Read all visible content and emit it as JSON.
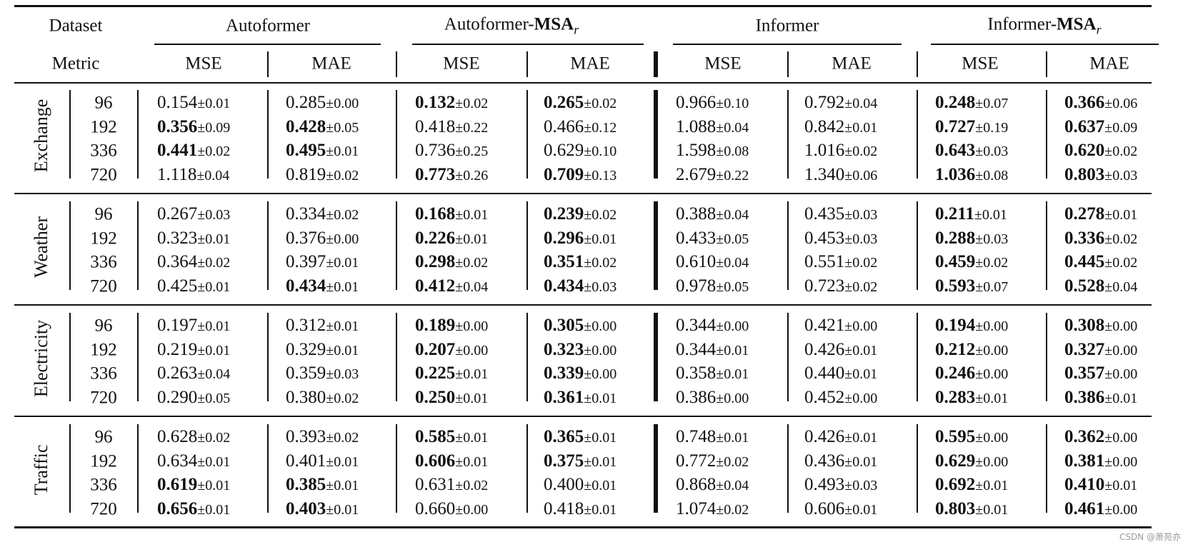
{
  "table": {
    "header_row1": {
      "dataset_label": "Dataset",
      "models": [
        "Autoformer",
        "Autoformer-",
        "Informer",
        "Informer-"
      ],
      "model_suffix_bold": [
        "",
        "MSA",
        "",
        "MSA"
      ],
      "model_suffix_sub": [
        "",
        "r",
        "",
        "r"
      ]
    },
    "header_row2": {
      "metric_label": "Metric",
      "metrics": [
        "MSE",
        "MAE",
        "MSE",
        "MAE",
        "MSE",
        "MAE",
        "MSE",
        "MAE"
      ]
    },
    "groups": [
      {
        "name": "Exchange",
        "rows": [
          {
            "horizon": "96",
            "cells": [
              {
                "v": "0.154",
                "s": "±0.01",
                "b": false
              },
              {
                "v": "0.285",
                "s": "±0.00",
                "b": false
              },
              {
                "v": "0.132",
                "s": "±0.02",
                "b": true
              },
              {
                "v": "0.265",
                "s": "±0.02",
                "b": true
              },
              {
                "v": "0.966",
                "s": "±0.10",
                "b": false
              },
              {
                "v": "0.792",
                "s": "±0.04",
                "b": false
              },
              {
                "v": "0.248",
                "s": "±0.07",
                "b": true
              },
              {
                "v": "0.366",
                "s": "±0.06",
                "b": true
              }
            ]
          },
          {
            "horizon": "192",
            "cells": [
              {
                "v": "0.356",
                "s": "±0.09",
                "b": true
              },
              {
                "v": "0.428",
                "s": "±0.05",
                "b": true
              },
              {
                "v": "0.418",
                "s": "±0.22",
                "b": false
              },
              {
                "v": "0.466",
                "s": "±0.12",
                "b": false
              },
              {
                "v": "1.088",
                "s": "±0.04",
                "b": false
              },
              {
                "v": "0.842",
                "s": "±0.01",
                "b": false
              },
              {
                "v": "0.727",
                "s": "±0.19",
                "b": true
              },
              {
                "v": "0.637",
                "s": "±0.09",
                "b": true
              }
            ]
          },
          {
            "horizon": "336",
            "cells": [
              {
                "v": "0.441",
                "s": "±0.02",
                "b": true
              },
              {
                "v": "0.495",
                "s": "±0.01",
                "b": true
              },
              {
                "v": "0.736",
                "s": "±0.25",
                "b": false
              },
              {
                "v": "0.629",
                "s": "±0.10",
                "b": false
              },
              {
                "v": "1.598",
                "s": "±0.08",
                "b": false
              },
              {
                "v": "1.016",
                "s": "±0.02",
                "b": false
              },
              {
                "v": "0.643",
                "s": "±0.03",
                "b": true
              },
              {
                "v": "0.620",
                "s": "±0.02",
                "b": true
              }
            ]
          },
          {
            "horizon": "720",
            "cells": [
              {
                "v": "1.118",
                "s": "±0.04",
                "b": false
              },
              {
                "v": "0.819",
                "s": "±0.02",
                "b": false
              },
              {
                "v": "0.773",
                "s": "±0.26",
                "b": true
              },
              {
                "v": "0.709",
                "s": "±0.13",
                "b": true
              },
              {
                "v": "2.679",
                "s": "±0.22",
                "b": false
              },
              {
                "v": "1.340",
                "s": "±0.06",
                "b": false
              },
              {
                "v": "1.036",
                "s": "±0.08",
                "b": true
              },
              {
                "v": "0.803",
                "s": "±0.03",
                "b": true
              }
            ]
          }
        ]
      },
      {
        "name": "Weather",
        "rows": [
          {
            "horizon": "96",
            "cells": [
              {
                "v": "0.267",
                "s": "±0.03",
                "b": false
              },
              {
                "v": "0.334",
                "s": "±0.02",
                "b": false
              },
              {
                "v": "0.168",
                "s": "±0.01",
                "b": true
              },
              {
                "v": "0.239",
                "s": "±0.02",
                "b": true
              },
              {
                "v": "0.388",
                "s": "±0.04",
                "b": false
              },
              {
                "v": "0.435",
                "s": "±0.03",
                "b": false
              },
              {
                "v": "0.211",
                "s": "±0.01",
                "b": true
              },
              {
                "v": "0.278",
                "s": "±0.01",
                "b": true
              }
            ]
          },
          {
            "horizon": "192",
            "cells": [
              {
                "v": "0.323",
                "s": "±0.01",
                "b": false
              },
              {
                "v": "0.376",
                "s": "±0.00",
                "b": false
              },
              {
                "v": "0.226",
                "s": "±0.01",
                "b": true
              },
              {
                "v": "0.296",
                "s": "±0.01",
                "b": true
              },
              {
                "v": "0.433",
                "s": "±0.05",
                "b": false
              },
              {
                "v": "0.453",
                "s": "±0.03",
                "b": false
              },
              {
                "v": "0.288",
                "s": "±0.03",
                "b": true
              },
              {
                "v": "0.336",
                "s": "±0.02",
                "b": true
              }
            ]
          },
          {
            "horizon": "336",
            "cells": [
              {
                "v": "0.364",
                "s": "±0.02",
                "b": false
              },
              {
                "v": "0.397",
                "s": "±0.01",
                "b": false
              },
              {
                "v": "0.298",
                "s": "±0.02",
                "b": true
              },
              {
                "v": "0.351",
                "s": "±0.02",
                "b": true
              },
              {
                "v": "0.610",
                "s": "±0.04",
                "b": false
              },
              {
                "v": "0.551",
                "s": "±0.02",
                "b": false
              },
              {
                "v": "0.459",
                "s": "±0.02",
                "b": true
              },
              {
                "v": "0.445",
                "s": "±0.02",
                "b": true
              }
            ]
          },
          {
            "horizon": "720",
            "cells": [
              {
                "v": "0.425",
                "s": "±0.01",
                "b": false
              },
              {
                "v": "0.434",
                "s": "±0.01",
                "b": true
              },
              {
                "v": "0.412",
                "s": "±0.04",
                "b": true
              },
              {
                "v": "0.434",
                "s": "±0.03",
                "b": true
              },
              {
                "v": "0.978",
                "s": "±0.05",
                "b": false
              },
              {
                "v": "0.723",
                "s": "±0.02",
                "b": false
              },
              {
                "v": "0.593",
                "s": "±0.07",
                "b": true
              },
              {
                "v": "0.528",
                "s": "±0.04",
                "b": true
              }
            ]
          }
        ]
      },
      {
        "name": "Electricity",
        "rows": [
          {
            "horizon": "96",
            "cells": [
              {
                "v": "0.197",
                "s": "±0.01",
                "b": false
              },
              {
                "v": "0.312",
                "s": "±0.01",
                "b": false
              },
              {
                "v": "0.189",
                "s": "±0.00",
                "b": true
              },
              {
                "v": "0.305",
                "s": "±0.00",
                "b": true
              },
              {
                "v": "0.344",
                "s": "±0.00",
                "b": false
              },
              {
                "v": "0.421",
                "s": "±0.00",
                "b": false
              },
              {
                "v": "0.194",
                "s": "±0.00",
                "b": true
              },
              {
                "v": "0.308",
                "s": "±0.00",
                "b": true
              }
            ]
          },
          {
            "horizon": "192",
            "cells": [
              {
                "v": "0.219",
                "s": "±0.01",
                "b": false
              },
              {
                "v": "0.329",
                "s": "±0.01",
                "b": false
              },
              {
                "v": "0.207",
                "s": "±0.00",
                "b": true
              },
              {
                "v": "0.323",
                "s": "±0.00",
                "b": true
              },
              {
                "v": "0.344",
                "s": "±0.01",
                "b": false
              },
              {
                "v": "0.426",
                "s": "±0.01",
                "b": false
              },
              {
                "v": "0.212",
                "s": "±0.00",
                "b": true
              },
              {
                "v": "0.327",
                "s": "±0.00",
                "b": true
              }
            ]
          },
          {
            "horizon": "336",
            "cells": [
              {
                "v": "0.263",
                "s": "±0.04",
                "b": false
              },
              {
                "v": "0.359",
                "s": "±0.03",
                "b": false
              },
              {
                "v": "0.225",
                "s": "±0.01",
                "b": true
              },
              {
                "v": "0.339",
                "s": "±0.00",
                "b": true
              },
              {
                "v": "0.358",
                "s": "±0.01",
                "b": false
              },
              {
                "v": "0.440",
                "s": "±0.01",
                "b": false
              },
              {
                "v": "0.246",
                "s": "±0.00",
                "b": true
              },
              {
                "v": "0.357",
                "s": "±0.00",
                "b": true
              }
            ]
          },
          {
            "horizon": "720",
            "cells": [
              {
                "v": "0.290",
                "s": "±0.05",
                "b": false
              },
              {
                "v": "0.380",
                "s": "±0.02",
                "b": false
              },
              {
                "v": "0.250",
                "s": "±0.01",
                "b": true
              },
              {
                "v": "0.361",
                "s": "±0.01",
                "b": true
              },
              {
                "v": "0.386",
                "s": "±0.00",
                "b": false
              },
              {
                "v": "0.452",
                "s": "±0.00",
                "b": false
              },
              {
                "v": "0.283",
                "s": "±0.01",
                "b": true
              },
              {
                "v": "0.386",
                "s": "±0.01",
                "b": true
              }
            ]
          }
        ]
      },
      {
        "name": "Traffic",
        "rows": [
          {
            "horizon": "96",
            "cells": [
              {
                "v": "0.628",
                "s": "±0.02",
                "b": false
              },
              {
                "v": "0.393",
                "s": "±0.02",
                "b": false
              },
              {
                "v": "0.585",
                "s": "±0.01",
                "b": true
              },
              {
                "v": "0.365",
                "s": "±0.01",
                "b": true
              },
              {
                "v": "0.748",
                "s": "±0.01",
                "b": false
              },
              {
                "v": "0.426",
                "s": "±0.01",
                "b": false
              },
              {
                "v": "0.595",
                "s": "±0.00",
                "b": true
              },
              {
                "v": "0.362",
                "s": "±0.00",
                "b": true
              }
            ]
          },
          {
            "horizon": "192",
            "cells": [
              {
                "v": "0.634",
                "s": "±0.01",
                "b": false
              },
              {
                "v": "0.401",
                "s": "±0.01",
                "b": false
              },
              {
                "v": "0.606",
                "s": "±0.01",
                "b": true
              },
              {
                "v": "0.375",
                "s": "±0.01",
                "b": true
              },
              {
                "v": "0.772",
                "s": "±0.02",
                "b": false
              },
              {
                "v": "0.436",
                "s": "±0.01",
                "b": false
              },
              {
                "v": "0.629",
                "s": "±0.00",
                "b": true
              },
              {
                "v": "0.381",
                "s": "±0.00",
                "b": true
              }
            ]
          },
          {
            "horizon": "336",
            "cells": [
              {
                "v": "0.619",
                "s": "±0.01",
                "b": true
              },
              {
                "v": "0.385",
                "s": "±0.01",
                "b": true
              },
              {
                "v": "0.631",
                "s": "±0.02",
                "b": false
              },
              {
                "v": "0.400",
                "s": "±0.01",
                "b": false
              },
              {
                "v": "0.868",
                "s": "±0.04",
                "b": false
              },
              {
                "v": "0.493",
                "s": "±0.03",
                "b": false
              },
              {
                "v": "0.692",
                "s": "±0.01",
                "b": true
              },
              {
                "v": "0.410",
                "s": "±0.01",
                "b": true
              }
            ]
          },
          {
            "horizon": "720",
            "cells": [
              {
                "v": "0.656",
                "s": "±0.01",
                "b": true
              },
              {
                "v": "0.403",
                "s": "±0.01",
                "b": true
              },
              {
                "v": "0.660",
                "s": "±0.00",
                "b": false
              },
              {
                "v": "0.418",
                "s": "±0.01",
                "b": false
              },
              {
                "v": "1.074",
                "s": "±0.02",
                "b": false
              },
              {
                "v": "0.606",
                "s": "±0.01",
                "b": false
              },
              {
                "v": "0.803",
                "s": "±0.01",
                "b": true
              },
              {
                "v": "0.461",
                "s": "±0.00",
                "b": true
              }
            ]
          }
        ]
      }
    ]
  },
  "watermark": "CSDN @萧苑亦"
}
